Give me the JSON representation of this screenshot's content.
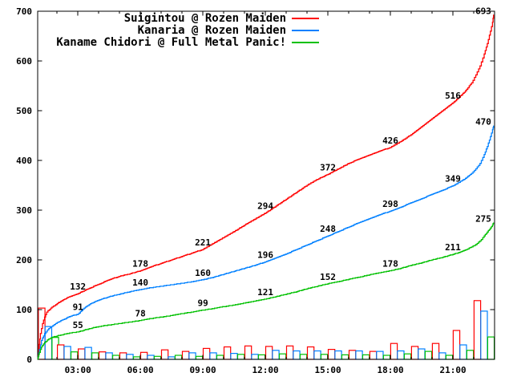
{
  "chart_data": {
    "type": "line",
    "title": "",
    "description": "Cumulative vote tally over one day for three characters, with hourly vote-count bars along the bottom",
    "legend_position": "top-left-inside",
    "grid": false,
    "colors": {
      "axis": "#000000",
      "background": "#ffffff"
    },
    "legend": [
      {
        "label": "Suigintou @ Rozen Maiden",
        "color": "#ff0000"
      },
      {
        "label": "Kanaria @ Rozen Maiden",
        "color": "#0080ff"
      },
      {
        "label": "Kaname Chidori @ Full Metal Panic!",
        "color": "#00c000"
      }
    ],
    "x_axis": {
      "label": "",
      "major_tick_labels": [
        "03:00",
        "06:00",
        "09:00",
        "12:00",
        "15:00",
        "18:00",
        "21:00"
      ],
      "major_tick_hours": [
        3,
        6,
        9,
        12,
        15,
        18,
        21
      ],
      "minor_tick_interval_hours": 1,
      "range_hours": [
        1.07,
        23.0
      ]
    },
    "y_axis": {
      "label": "",
      "tick_labels": [
        "0",
        "100",
        "200",
        "300",
        "400",
        "500",
        "600",
        "700"
      ],
      "tick_values": [
        0,
        100,
        200,
        300,
        400,
        500,
        600,
        700
      ],
      "range": [
        0,
        700
      ]
    },
    "series": [
      {
        "name": "Suigintou @ Rozen Maiden",
        "color": "#ff0000",
        "labeled_points": [
          {
            "hour": 3,
            "value": 132
          },
          {
            "hour": 6,
            "value": 178
          },
          {
            "hour": 9,
            "value": 221
          },
          {
            "hour": 12,
            "value": 294
          },
          {
            "hour": 15,
            "value": 372
          },
          {
            "hour": 18,
            "value": 426
          },
          {
            "hour": 21,
            "value": 516
          },
          {
            "hour": 22.9,
            "value": 693,
            "final": true
          }
        ],
        "anchors": [
          [
            1.07,
            0
          ],
          [
            1.1,
            8
          ],
          [
            1.15,
            30
          ],
          [
            1.2,
            52
          ],
          [
            1.3,
            72
          ],
          [
            1.4,
            85
          ],
          [
            1.5,
            95
          ],
          [
            1.7,
            103
          ],
          [
            2.0,
            112
          ],
          [
            2.3,
            120
          ],
          [
            2.6,
            126
          ],
          [
            3.0,
            132
          ],
          [
            3.5,
            142
          ],
          [
            4.0,
            151
          ],
          [
            4.5,
            160
          ],
          [
            5.0,
            167
          ],
          [
            5.5,
            172
          ],
          [
            6.0,
            178
          ],
          [
            6.5,
            186
          ],
          [
            7.0,
            193
          ],
          [
            7.5,
            200
          ],
          [
            8.0,
            207
          ],
          [
            8.5,
            214
          ],
          [
            9.0,
            221
          ],
          [
            9.5,
            233
          ],
          [
            10.0,
            245
          ],
          [
            10.5,
            257
          ],
          [
            11.0,
            270
          ],
          [
            11.5,
            282
          ],
          [
            12.0,
            294
          ],
          [
            12.5,
            308
          ],
          [
            13.0,
            322
          ],
          [
            13.5,
            336
          ],
          [
            14.0,
            350
          ],
          [
            14.5,
            362
          ],
          [
            15.0,
            372
          ],
          [
            15.5,
            383
          ],
          [
            16.0,
            394
          ],
          [
            16.5,
            403
          ],
          [
            17.0,
            411
          ],
          [
            17.5,
            419
          ],
          [
            18.0,
            426
          ],
          [
            18.5,
            438
          ],
          [
            19.0,
            452
          ],
          [
            19.5,
            468
          ],
          [
            20.0,
            484
          ],
          [
            20.5,
            500
          ],
          [
            21.0,
            516
          ],
          [
            21.3,
            527
          ],
          [
            21.6,
            540
          ],
          [
            21.9,
            556
          ],
          [
            22.1,
            572
          ],
          [
            22.3,
            590
          ],
          [
            22.5,
            614
          ],
          [
            22.65,
            635
          ],
          [
            22.8,
            660
          ],
          [
            22.9,
            678
          ],
          [
            22.95,
            693
          ]
        ]
      },
      {
        "name": "Kanaria @ Rozen Maiden",
        "color": "#0080ff",
        "labeled_points": [
          {
            "hour": 3,
            "value": 91
          },
          {
            "hour": 6,
            "value": 140
          },
          {
            "hour": 9,
            "value": 160
          },
          {
            "hour": 12,
            "value": 196
          },
          {
            "hour": 15,
            "value": 248
          },
          {
            "hour": 18,
            "value": 298
          },
          {
            "hour": 21,
            "value": 349
          },
          {
            "hour": 22.9,
            "value": 470,
            "final": true
          }
        ],
        "anchors": [
          [
            1.07,
            0
          ],
          [
            1.1,
            6
          ],
          [
            1.15,
            20
          ],
          [
            1.25,
            38
          ],
          [
            1.4,
            52
          ],
          [
            1.6,
            62
          ],
          [
            1.8,
            68
          ],
          [
            2.0,
            74
          ],
          [
            2.3,
            80
          ],
          [
            2.6,
            86
          ],
          [
            3.0,
            91
          ],
          [
            3.3,
            103
          ],
          [
            3.6,
            112
          ],
          [
            4.0,
            119
          ],
          [
            4.5,
            126
          ],
          [
            5.0,
            131
          ],
          [
            5.5,
            136
          ],
          [
            6.0,
            140
          ],
          [
            6.5,
            144
          ],
          [
            7.0,
            147
          ],
          [
            7.5,
            150
          ],
          [
            8.0,
            153
          ],
          [
            8.5,
            156
          ],
          [
            9.0,
            160
          ],
          [
            9.5,
            165
          ],
          [
            10.0,
            171
          ],
          [
            10.5,
            177
          ],
          [
            11.0,
            183
          ],
          [
            11.5,
            189
          ],
          [
            12.0,
            196
          ],
          [
            12.5,
            204
          ],
          [
            13.0,
            212
          ],
          [
            13.5,
            221
          ],
          [
            14.0,
            230
          ],
          [
            14.5,
            239
          ],
          [
            15.0,
            248
          ],
          [
            15.5,
            257
          ],
          [
            16.0,
            266
          ],
          [
            16.5,
            275
          ],
          [
            17.0,
            283
          ],
          [
            17.5,
            291
          ],
          [
            18.0,
            298
          ],
          [
            18.5,
            306
          ],
          [
            19.0,
            315
          ],
          [
            19.5,
            323
          ],
          [
            20.0,
            332
          ],
          [
            20.5,
            340
          ],
          [
            21.0,
            349
          ],
          [
            21.3,
            356
          ],
          [
            21.6,
            364
          ],
          [
            21.9,
            374
          ],
          [
            22.1,
            383
          ],
          [
            22.3,
            394
          ],
          [
            22.5,
            412
          ],
          [
            22.65,
            428
          ],
          [
            22.8,
            448
          ],
          [
            22.9,
            462
          ],
          [
            22.95,
            470
          ]
        ]
      },
      {
        "name": "Kaname Chidori @ Full Metal Panic!",
        "color": "#00c000",
        "labeled_points": [
          {
            "hour": 3,
            "value": 55
          },
          {
            "hour": 6,
            "value": 78
          },
          {
            "hour": 9,
            "value": 99
          },
          {
            "hour": 12,
            "value": 121
          },
          {
            "hour": 15,
            "value": 152
          },
          {
            "hour": 18,
            "value": 178
          },
          {
            "hour": 21,
            "value": 211
          },
          {
            "hour": 22.9,
            "value": 275,
            "final": true
          }
        ],
        "anchors": [
          [
            1.07,
            0
          ],
          [
            1.1,
            5
          ],
          [
            1.15,
            14
          ],
          [
            1.25,
            25
          ],
          [
            1.4,
            34
          ],
          [
            1.6,
            41
          ],
          [
            1.8,
            45
          ],
          [
            2.0,
            47
          ],
          [
            2.3,
            50
          ],
          [
            2.6,
            53
          ],
          [
            3.0,
            55
          ],
          [
            3.5,
            61
          ],
          [
            4.0,
            66
          ],
          [
            4.5,
            69
          ],
          [
            5.0,
            72
          ],
          [
            5.5,
            75
          ],
          [
            6.0,
            78
          ],
          [
            6.5,
            82
          ],
          [
            7.0,
            85
          ],
          [
            7.5,
            88
          ],
          [
            8.0,
            92
          ],
          [
            8.5,
            95
          ],
          [
            9.0,
            99
          ],
          [
            9.5,
            102
          ],
          [
            10.0,
            106
          ],
          [
            10.5,
            109
          ],
          [
            11.0,
            113
          ],
          [
            11.5,
            117
          ],
          [
            12.0,
            121
          ],
          [
            12.5,
            126
          ],
          [
            13.0,
            131
          ],
          [
            13.5,
            136
          ],
          [
            14.0,
            142
          ],
          [
            14.5,
            147
          ],
          [
            15.0,
            152
          ],
          [
            15.5,
            156
          ],
          [
            16.0,
            161
          ],
          [
            16.5,
            165
          ],
          [
            17.0,
            170
          ],
          [
            17.5,
            174
          ],
          [
            18.0,
            178
          ],
          [
            18.5,
            183
          ],
          [
            19.0,
            189
          ],
          [
            19.5,
            194
          ],
          [
            20.0,
            200
          ],
          [
            20.5,
            205
          ],
          [
            21.0,
            211
          ],
          [
            21.3,
            215
          ],
          [
            21.6,
            220
          ],
          [
            21.9,
            226
          ],
          [
            22.1,
            231
          ],
          [
            22.3,
            238
          ],
          [
            22.5,
            248
          ],
          [
            22.65,
            256
          ],
          [
            22.8,
            264
          ],
          [
            22.9,
            270
          ],
          [
            22.95,
            275
          ]
        ]
      }
    ],
    "hourly_vote_bars": {
      "hours": [
        1,
        2,
        3,
        4,
        5,
        6,
        7,
        8,
        9,
        10,
        11,
        12,
        13,
        14,
        15,
        16,
        17,
        18,
        19,
        20,
        21,
        22
      ],
      "bar_style": "outline",
      "series": [
        {
          "name": "Suigintou @ Rozen Maiden",
          "color": "#ff0000",
          "values": [
            103,
            29,
            21,
            15,
            13,
            14,
            19,
            16,
            22,
            25,
            27,
            26,
            27,
            25,
            20,
            18,
            16,
            32,
            26,
            32,
            58,
            118
          ]
        },
        {
          "name": "Kanaria @ Rozen Maiden",
          "color": "#0080ff",
          "values": [
            66,
            26,
            24,
            13,
            10,
            8,
            5,
            13,
            13,
            12,
            10,
            18,
            17,
            17,
            17,
            17,
            16,
            17,
            21,
            13,
            29,
            97
          ]
        },
        {
          "name": "Kaname Chidori @ Full Metal Panic!",
          "color": "#00c000",
          "values": [
            44,
            15,
            13,
            8,
            5,
            6,
            8,
            6,
            8,
            10,
            9,
            11,
            10,
            10,
            9,
            9,
            8,
            11,
            16,
            8,
            18,
            45
          ]
        }
      ]
    }
  }
}
